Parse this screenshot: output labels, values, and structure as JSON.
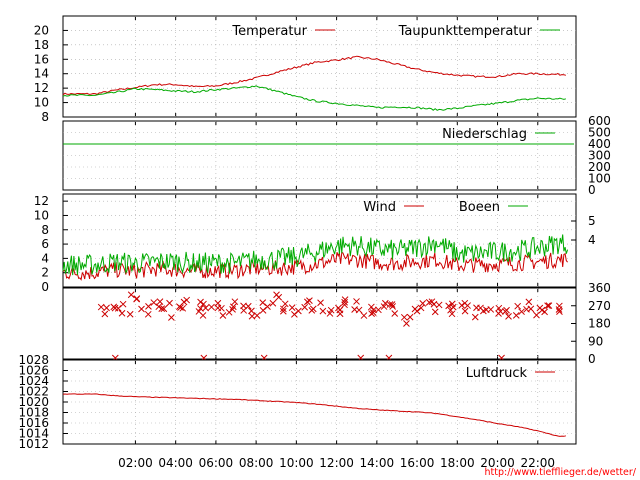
{
  "chart_data": [
    {
      "type": "line",
      "ylim": [
        8,
        22
      ],
      "yticks": [
        "8",
        "10",
        "12",
        "14",
        "16",
        "18",
        "20"
      ],
      "grid": true,
      "legend_position": "top-right",
      "x_unit": "hours",
      "series": [
        {
          "name": "Temperatur",
          "color": "#cc0000",
          "x": [
            0,
            1,
            2,
            3,
            4,
            5,
            6,
            7,
            8,
            9,
            10,
            11,
            12,
            13,
            14,
            15,
            16,
            17,
            18,
            19,
            20,
            21,
            22,
            23
          ],
          "values": [
            11.2,
            11.7,
            12.1,
            12.5,
            12.5,
            12.2,
            12.3,
            12.8,
            13.4,
            14.2,
            14.9,
            15.6,
            15.9,
            16.3,
            16.0,
            15.3,
            14.6,
            14.1,
            13.8,
            13.6,
            13.6,
            14.0,
            14.0,
            13.9
          ]
        },
        {
          "name": "Taupunkttemperatur",
          "color": "#00aa00",
          "x": [
            0,
            1,
            2,
            3,
            4,
            5,
            6,
            7,
            8,
            9,
            10,
            11,
            12,
            13,
            14,
            15,
            16,
            17,
            18,
            19,
            20,
            21,
            22,
            23
          ],
          "values": [
            11.0,
            11.4,
            11.9,
            11.8,
            11.6,
            11.5,
            11.8,
            12.0,
            12.3,
            11.6,
            10.8,
            10.2,
            9.9,
            9.6,
            9.3,
            9.4,
            9.3,
            9.0,
            9.2,
            9.6,
            9.9,
            10.3,
            10.6,
            10.5
          ]
        }
      ]
    },
    {
      "type": "line",
      "ylim": [
        0,
        600
      ],
      "yticks": [
        "0",
        "100",
        "200",
        "300",
        "400",
        "500",
        "600"
      ],
      "grid": true,
      "legend_position": "top-right",
      "series": [
        {
          "name": "Niederschlag",
          "color": "#00aa00",
          "x": [
            0,
            23.5
          ],
          "values": [
            400,
            400
          ]
        }
      ]
    },
    {
      "type": "line",
      "ylim": [
        0,
        13
      ],
      "yticks": [
        "0",
        "2",
        "4",
        "6",
        "8",
        "10",
        "12"
      ],
      "right_ticks": [
        "4",
        "5"
      ],
      "grid": true,
      "legend_position": "top-right",
      "series": [
        {
          "name": "Wind",
          "color": "#cc0000",
          "x": [
            0,
            1,
            2,
            3,
            4,
            5,
            6,
            7,
            8,
            9,
            10,
            11,
            12,
            13,
            14,
            15,
            16,
            17,
            18,
            19,
            20,
            21,
            22,
            23
          ],
          "values": [
            1.8,
            2.2,
            2.0,
            2.3,
            2.2,
            2.0,
            2.1,
            2.1,
            2.4,
            2.4,
            2.6,
            3.0,
            3.6,
            3.6,
            3.2,
            3.1,
            3.4,
            3.6,
            2.8,
            2.9,
            3.0,
            3.1,
            3.3,
            3.6
          ]
        },
        {
          "name": "Boeen",
          "color": "#00aa00",
          "x": [
            0,
            1,
            2,
            3,
            4,
            5,
            6,
            7,
            8,
            9,
            10,
            11,
            12,
            13,
            14,
            15,
            16,
            17,
            18,
            19,
            20,
            21,
            22,
            23
          ],
          "values": [
            2.8,
            3.2,
            3.0,
            3.2,
            3.3,
            3.0,
            3.1,
            3.0,
            3.5,
            3.6,
            3.9,
            4.6,
            5.5,
            5.5,
            5.0,
            4.8,
            5.2,
            6.0,
            4.3,
            4.4,
            4.6,
            4.8,
            5.2,
            5.8
          ]
        }
      ]
    },
    {
      "type": "scatter",
      "ylim": [
        0,
        360
      ],
      "right_ticks": [
        "0",
        "90",
        "180",
        "270",
        "360"
      ],
      "marker": "x",
      "grid": true,
      "series": [
        {
          "color": "#cc0000",
          "x": [
            0.5,
            1.0,
            1.5,
            2.0,
            2.5,
            3.0,
            3.5,
            4.0,
            4.5,
            5.0,
            5.5,
            6.0,
            6.5,
            7.0,
            7.5,
            8.0,
            8.5,
            9.0,
            9.5,
            10.0,
            10.5,
            11.0,
            11.5,
            12.0,
            12.5,
            13.0,
            13.5,
            14.0,
            14.5,
            15.0,
            15.5,
            16.0,
            16.5,
            17.0,
            17.5,
            18.0,
            18.5,
            19.0,
            19.5,
            20.0,
            20.5,
            21.0,
            21.5,
            22.0,
            22.5,
            23.0
          ],
          "values": [
            240,
            270,
            250,
            300,
            240,
            270,
            260,
            240,
            280,
            260,
            250,
            270,
            240,
            280,
            260,
            240,
            270,
            300,
            260,
            240,
            280,
            270,
            220,
            250,
            300,
            270,
            240,
            250,
            280,
            260,
            200,
            240,
            270,
            250,
            240,
            280,
            270,
            240,
            260,
            250,
            220,
            240,
            270,
            230,
            250,
            260
          ]
        }
      ]
    },
    {
      "type": "line",
      "ylim": [
        1012,
        1028
      ],
      "yticks": [
        "1012",
        "1014",
        "1016",
        "1018",
        "1020",
        "1022",
        "1024",
        "1026",
        "1028"
      ],
      "grid": true,
      "legend_position": "top-right",
      "series": [
        {
          "name": "Luftdruck",
          "color": "#cc0000",
          "x": [
            0,
            1,
            2,
            3,
            4,
            5,
            6,
            7,
            8,
            9,
            10,
            11,
            12,
            13,
            14,
            15,
            16,
            17,
            18,
            19,
            20,
            21,
            22,
            23
          ],
          "values": [
            1021.5,
            1021.2,
            1021.0,
            1020.9,
            1020.8,
            1020.7,
            1020.6,
            1020.5,
            1020.3,
            1020.1,
            1019.9,
            1019.6,
            1019.2,
            1018.8,
            1018.5,
            1018.3,
            1018.1,
            1017.8,
            1017.2,
            1016.6,
            1015.9,
            1015.3,
            1014.5,
            1013.5
          ]
        }
      ]
    }
  ],
  "x_axis": {
    "x_unit": "hours",
    "xlim": [
      -1.6,
      23.9
    ],
    "ticks": [
      {
        "x": 2,
        "label": "02:00"
      },
      {
        "x": 4,
        "label": "04:00"
      },
      {
        "x": 6,
        "label": "06:00"
      },
      {
        "x": 8,
        "label": "08:00"
      },
      {
        "x": 10,
        "label": "10:00"
      },
      {
        "x": 12,
        "label": "12:00"
      },
      {
        "x": 14,
        "label": "14:00"
      },
      {
        "x": 16,
        "label": "16:00"
      },
      {
        "x": 18,
        "label": "18:00"
      },
      {
        "x": 20,
        "label": "20:00"
      },
      {
        "x": 22,
        "label": "22:00"
      }
    ]
  },
  "credit_link": "http://www.tiefflieger.de/wetter/"
}
